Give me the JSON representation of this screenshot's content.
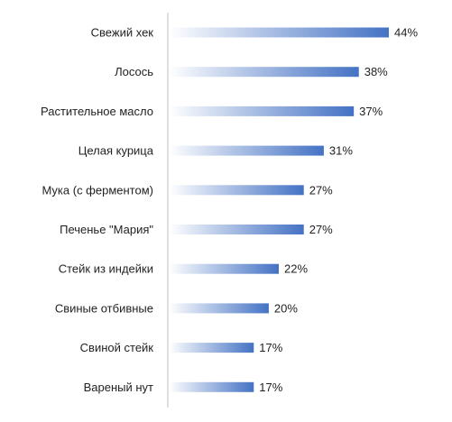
{
  "chart_data": {
    "type": "bar",
    "orientation": "horizontal",
    "categories": [
      "Свежий хек",
      "Лосось",
      "Растительное масло",
      "Целая курица",
      "Мука (с ферментом)",
      "Печенье \"Мария\"",
      "Стейк из индейки",
      "Свиные отбивные",
      "Свиной стейк",
      "Вареный нут"
    ],
    "values": [
      44,
      38,
      37,
      31,
      27,
      27,
      22,
      20,
      17,
      17
    ],
    "value_labels": [
      "44%",
      "38%",
      "37%",
      "31%",
      "27%",
      "27%",
      "22%",
      "20%",
      "17%",
      "17%"
    ],
    "unit": "%",
    "xlim": [
      0,
      50
    ],
    "grid": false,
    "legend": "none",
    "bar_gradient": {
      "from": "#ffffff",
      "to": "#4472c4"
    }
  }
}
